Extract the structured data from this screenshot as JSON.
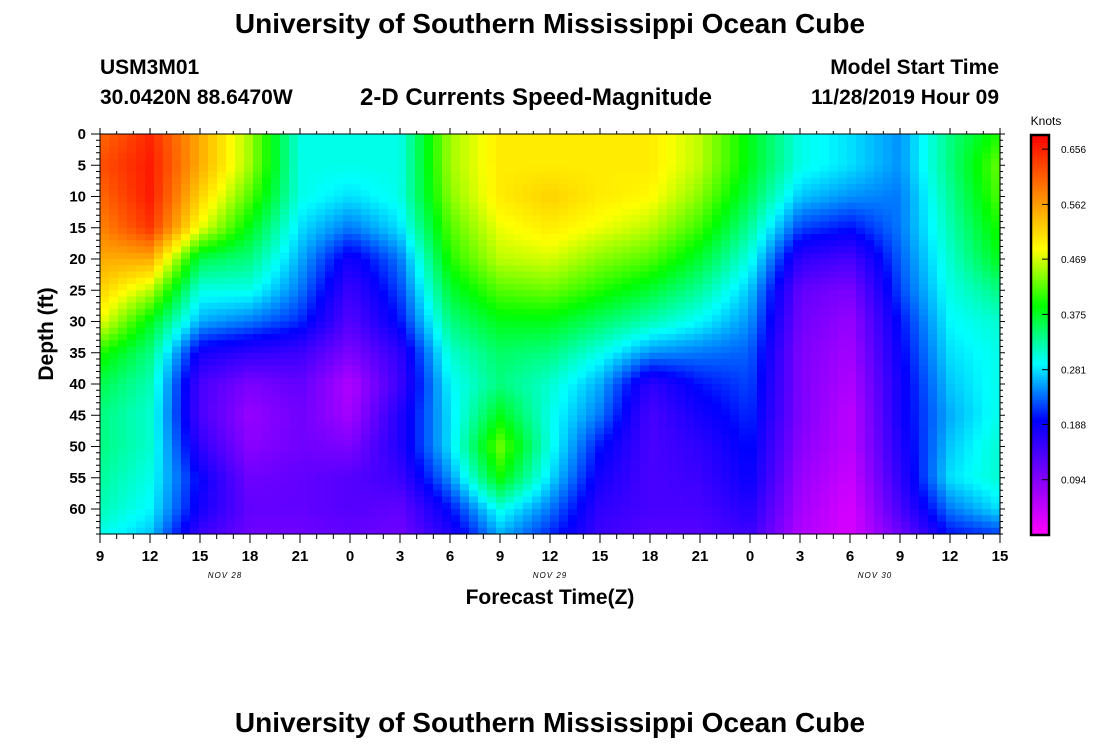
{
  "header": {
    "title": "University of Southern Mississippi Ocean Cube",
    "station_id": "USM3M01",
    "station_coords": "30.0420N 88.6470W",
    "subtitle": "2-D Currents Speed-Magnitude",
    "start_label": "Model Start Time",
    "start_value": "11/28/2019 Hour 09"
  },
  "footer": {
    "title": "University of Southern Mississippi Ocean Cube"
  },
  "chart_data": {
    "type": "heatmap",
    "xlabel": "Forecast Time(Z)",
    "ylabel": "Depth (ft)",
    "x_tick_labels": [
      "9",
      "12",
      "15",
      "18",
      "21",
      "0",
      "3",
      "6",
      "9",
      "12",
      "15",
      "18",
      "21",
      "0",
      "3",
      "6",
      "9",
      "12",
      "15"
    ],
    "x_range_hours": [
      0,
      54
    ],
    "date_labels": [
      {
        "label": "NOV 28",
        "hour": 7.5
      },
      {
        "label": "NOV 29",
        "hour": 27
      },
      {
        "label": "NOV 30",
        "hour": 46.5
      }
    ],
    "y_ticks": [
      0,
      5,
      10,
      15,
      20,
      25,
      30,
      35,
      40,
      45,
      50,
      55,
      60
    ],
    "y_range": [
      0,
      64
    ],
    "y_inverted": true,
    "colorbar": {
      "title": "Knots",
      "tick_labels": [
        "0.656",
        "0.562",
        "0.469",
        "0.375",
        "0.281",
        "0.188",
        "0.094"
      ],
      "range": [
        0,
        0.68
      ],
      "colormap": [
        "#ff00ff",
        "#8000ff",
        "#0000ff",
        "#00ffff",
        "#00ff00",
        "#ffff00",
        "#ff8000",
        "#ff0000"
      ]
    },
    "hours": [
      0,
      3,
      6,
      9,
      12,
      15,
      18,
      21,
      24,
      27,
      30,
      33,
      36,
      39,
      42,
      45,
      48,
      51,
      54
    ],
    "depths": [
      0,
      5,
      10,
      15,
      20,
      25,
      30,
      35,
      40,
      45,
      50,
      55,
      60,
      64
    ],
    "speed": [
      [
        0.6,
        0.65,
        0.55,
        0.45,
        0.3,
        0.3,
        0.3,
        0.45,
        0.5,
        0.5,
        0.5,
        0.5,
        0.46,
        0.38,
        0.3,
        0.28,
        0.25,
        0.34,
        0.4
      ],
      [
        0.62,
        0.66,
        0.55,
        0.45,
        0.3,
        0.3,
        0.3,
        0.45,
        0.5,
        0.5,
        0.5,
        0.5,
        0.46,
        0.38,
        0.3,
        0.28,
        0.25,
        0.34,
        0.43
      ],
      [
        0.6,
        0.66,
        0.52,
        0.42,
        0.3,
        0.28,
        0.3,
        0.44,
        0.5,
        0.52,
        0.5,
        0.49,
        0.44,
        0.36,
        0.27,
        0.25,
        0.24,
        0.33,
        0.42
      ],
      [
        0.58,
        0.64,
        0.48,
        0.38,
        0.28,
        0.24,
        0.28,
        0.42,
        0.48,
        0.5,
        0.48,
        0.46,
        0.41,
        0.33,
        0.22,
        0.2,
        0.24,
        0.32,
        0.4
      ],
      [
        0.55,
        0.55,
        0.36,
        0.34,
        0.26,
        0.18,
        0.24,
        0.4,
        0.46,
        0.47,
        0.44,
        0.42,
        0.37,
        0.3,
        0.16,
        0.14,
        0.23,
        0.31,
        0.38
      ],
      [
        0.52,
        0.46,
        0.3,
        0.3,
        0.24,
        0.15,
        0.22,
        0.37,
        0.42,
        0.43,
        0.4,
        0.37,
        0.33,
        0.27,
        0.12,
        0.1,
        0.22,
        0.3,
        0.34
      ],
      [
        0.48,
        0.38,
        0.26,
        0.24,
        0.21,
        0.13,
        0.2,
        0.34,
        0.38,
        0.38,
        0.35,
        0.32,
        0.29,
        0.25,
        0.11,
        0.08,
        0.2,
        0.29,
        0.31
      ],
      [
        0.4,
        0.34,
        0.18,
        0.16,
        0.15,
        0.1,
        0.16,
        0.31,
        0.35,
        0.34,
        0.3,
        0.25,
        0.24,
        0.23,
        0.1,
        0.07,
        0.19,
        0.28,
        0.3
      ],
      [
        0.36,
        0.32,
        0.14,
        0.1,
        0.12,
        0.06,
        0.15,
        0.29,
        0.34,
        0.31,
        0.26,
        0.16,
        0.2,
        0.22,
        0.1,
        0.06,
        0.18,
        0.27,
        0.3
      ],
      [
        0.34,
        0.31,
        0.14,
        0.08,
        0.11,
        0.07,
        0.17,
        0.28,
        0.38,
        0.3,
        0.24,
        0.14,
        0.18,
        0.21,
        0.1,
        0.05,
        0.18,
        0.26,
        0.3
      ],
      [
        0.34,
        0.31,
        0.16,
        0.09,
        0.11,
        0.1,
        0.17,
        0.28,
        0.43,
        0.3,
        0.2,
        0.14,
        0.16,
        0.2,
        0.09,
        0.05,
        0.17,
        0.27,
        0.31
      ],
      [
        0.33,
        0.3,
        0.19,
        0.11,
        0.12,
        0.13,
        0.15,
        0.25,
        0.39,
        0.28,
        0.18,
        0.14,
        0.15,
        0.19,
        0.08,
        0.04,
        0.16,
        0.28,
        0.31
      ],
      [
        0.32,
        0.29,
        0.18,
        0.12,
        0.12,
        0.13,
        0.12,
        0.2,
        0.3,
        0.24,
        0.16,
        0.14,
        0.14,
        0.17,
        0.07,
        0.03,
        0.14,
        0.24,
        0.28
      ],
      [
        0.3,
        0.27,
        0.15,
        0.11,
        0.11,
        0.12,
        0.11,
        0.17,
        0.26,
        0.21,
        0.15,
        0.13,
        0.13,
        0.15,
        0.06,
        0.03,
        0.11,
        0.2,
        0.22
      ]
    ]
  }
}
